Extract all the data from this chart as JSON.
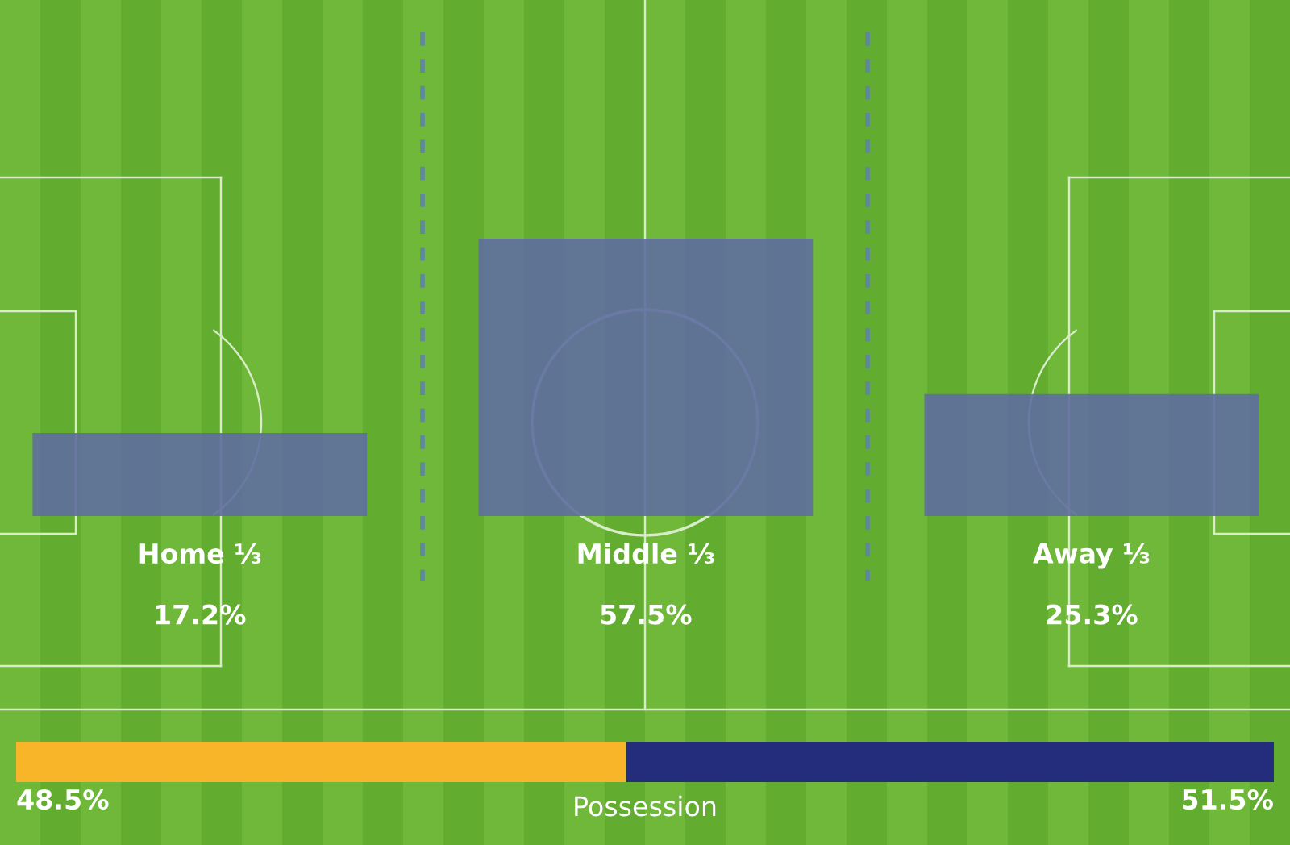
{
  "chart_data": [
    {
      "type": "bar",
      "categories": [
        "Home ⅓",
        "Middle ⅓",
        "Away ⅓"
      ],
      "values": [
        17.2,
        57.5,
        25.3
      ],
      "value_labels": [
        "17.2%",
        "57.5%",
        "25.3%"
      ],
      "color": "#5f6ea0",
      "tick_labels": "x"
    },
    {
      "type": "bar",
      "orientation": "horizontal",
      "stacked": true,
      "categories": [
        null
      ],
      "xlabel": "Possession",
      "tick_labels": false,
      "series": [
        {
          "color": "#f8b52a",
          "values": [
            48.5
          ],
          "value_labels": [
            "48.5%"
          ]
        },
        {
          "color": "#242d7c",
          "values": [
            51.5
          ],
          "value_labels": [
            "51.5%"
          ]
        }
      ]
    }
  ]
}
